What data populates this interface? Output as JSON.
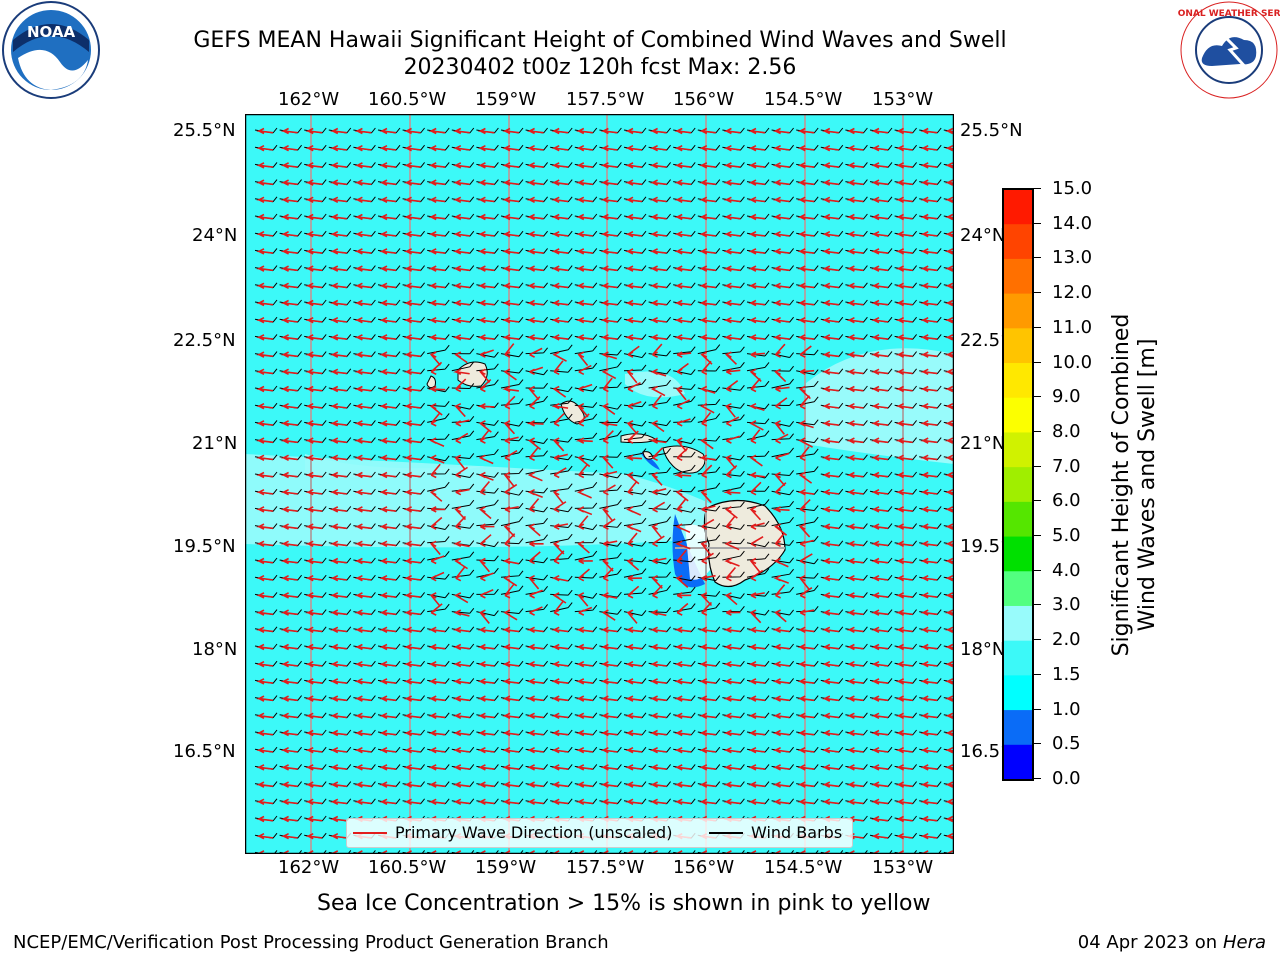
{
  "title": {
    "line1": "GEFS MEAN Hawaii Significant Height of Combined Wind Waves and Swell",
    "line2": "20230402 t00z 120h fcst   Max: 2.56"
  },
  "logos": {
    "left": {
      "icon": "noaa-logo-icon",
      "text": "NOAA"
    },
    "right": {
      "icon": "nws-logo-icon",
      "text": "NATIONAL WEATHER SERVICE"
    }
  },
  "map": {
    "lon_labels": [
      "162°W",
      "160.5°W",
      "159°W",
      "157.5°W",
      "156°W",
      "154.5°W",
      "153°W"
    ],
    "lat_labels": [
      "25.5°N",
      "24°N",
      "22.5°N",
      "21°N",
      "19.5°N",
      "18°N",
      "16.5°N"
    ],
    "colors": {
      "ocean": "#3cf9f8",
      "ocean_light": "#98fbfb",
      "land": "#eeebdd",
      "wave_arrow": "#e21c1c",
      "barb": "#000000",
      "grid": "#a8a8a8"
    }
  },
  "legend": {
    "wave_label": "Primary Wave Direction (unscaled)",
    "barb_label": "Wind Barbs"
  },
  "colorbar": {
    "label_line1": "Significant Height of Combined",
    "label_line2": "Wind Waves and Swell [m]",
    "ticks": [
      "0.0",
      "0.5",
      "1.0",
      "1.5",
      "2.0",
      "3.0",
      "4.0",
      "5.0",
      "6.0",
      "7.0",
      "8.0",
      "9.0",
      "10.0",
      "11.0",
      "12.0",
      "13.0",
      "14.0",
      "15.0"
    ],
    "colors": [
      "#0000ff",
      "#0a6cf7",
      "#00ffff",
      "#3cf9f8",
      "#98fbfb",
      "#52ff80",
      "#00e000",
      "#55e600",
      "#a0ee00",
      "#d0f200",
      "#fcff00",
      "#ffe800",
      "#ffc400",
      "#ff9a00",
      "#ff7000",
      "#ff4400",
      "#ff1a00"
    ]
  },
  "footer": {
    "sea_ice": "Sea Ice Concentration > 15% is shown in pink to yellow",
    "left": "NCEP/EMC/Verification Post Processing Product Generation Branch",
    "right_date": "04 Apr 2023 on ",
    "right_machine": "Hera"
  }
}
